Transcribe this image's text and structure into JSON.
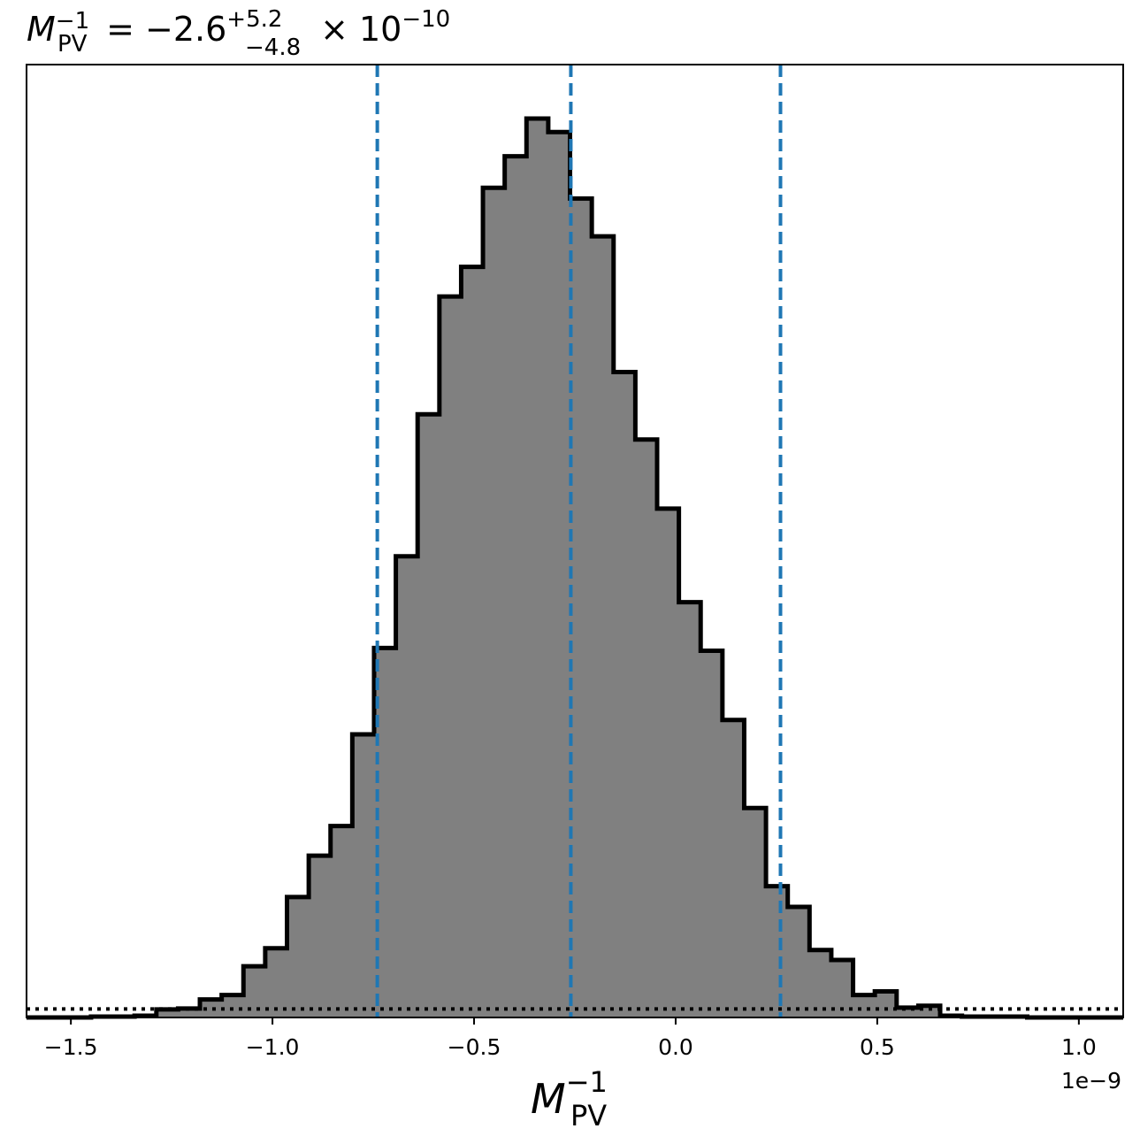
{
  "chart_data": {
    "type": "histogram",
    "title": {
      "main": "M",
      "sup": "−1",
      "sub": "PV",
      "equals": " = −2.6",
      "err_plus": "+5.2",
      "err_minus": "−4.8",
      "times": " × 10",
      "exp": "−10"
    },
    "xlabel": {
      "main": "M",
      "sup": "−1",
      "sub": "PV"
    },
    "x_offset_label": "1e−9",
    "x_scale": 1e-09,
    "xlim": [
      -1.61,
      1.11
    ],
    "ylim": [
      0,
      1.06
    ],
    "x_ticks": [
      -1.5,
      -1.0,
      -0.5,
      0.0,
      0.5,
      1.0
    ],
    "x_tick_labels": [
      "−1.5",
      "−1.0",
      "−0.5",
      "0.0",
      "0.5",
      "1.0"
    ],
    "hist_fill_color": "#808080",
    "hist_edge_color": "#000000",
    "bin_edges": [
      -1.45,
      -1.396,
      -1.342,
      -1.288,
      -1.234,
      -1.18,
      -1.126,
      -1.072,
      -1.018,
      -0.964,
      -0.91,
      -0.856,
      -0.802,
      -0.748,
      -0.694,
      -0.64,
      -0.586,
      -0.532,
      -0.478,
      -0.424,
      -0.37,
      -0.316,
      -0.262,
      -0.208,
      -0.154,
      -0.1,
      -0.046,
      0.008,
      0.062,
      0.116,
      0.17,
      0.224,
      0.278,
      0.332,
      0.386,
      0.44,
      0.494,
      0.548,
      0.602,
      0.656,
      0.71,
      0.764,
      0.818,
      0.872
    ],
    "counts": [
      0.001,
      0.001,
      0.002,
      0.009,
      0.01,
      0.02,
      0.025,
      0.057,
      0.077,
      0.134,
      0.18,
      0.213,
      0.315,
      0.411,
      0.513,
      0.671,
      0.802,
      0.835,
      0.923,
      0.958,
      1.0,
      0.985,
      0.911,
      0.869,
      0.718,
      0.643,
      0.566,
      0.462,
      0.408,
      0.331,
      0.233,
      0.146,
      0.123,
      0.075,
      0.064,
      0.025,
      0.029,
      0.011,
      0.013,
      0.002,
      0.001,
      0.001,
      0.001
    ],
    "vlines": {
      "values": [
        -0.74,
        -0.26,
        0.26
      ],
      "color": "#1f77b4",
      "style": "dashed"
    },
    "hline": {
      "value": 0.0095,
      "color": "#000000",
      "style": "dotted"
    }
  }
}
